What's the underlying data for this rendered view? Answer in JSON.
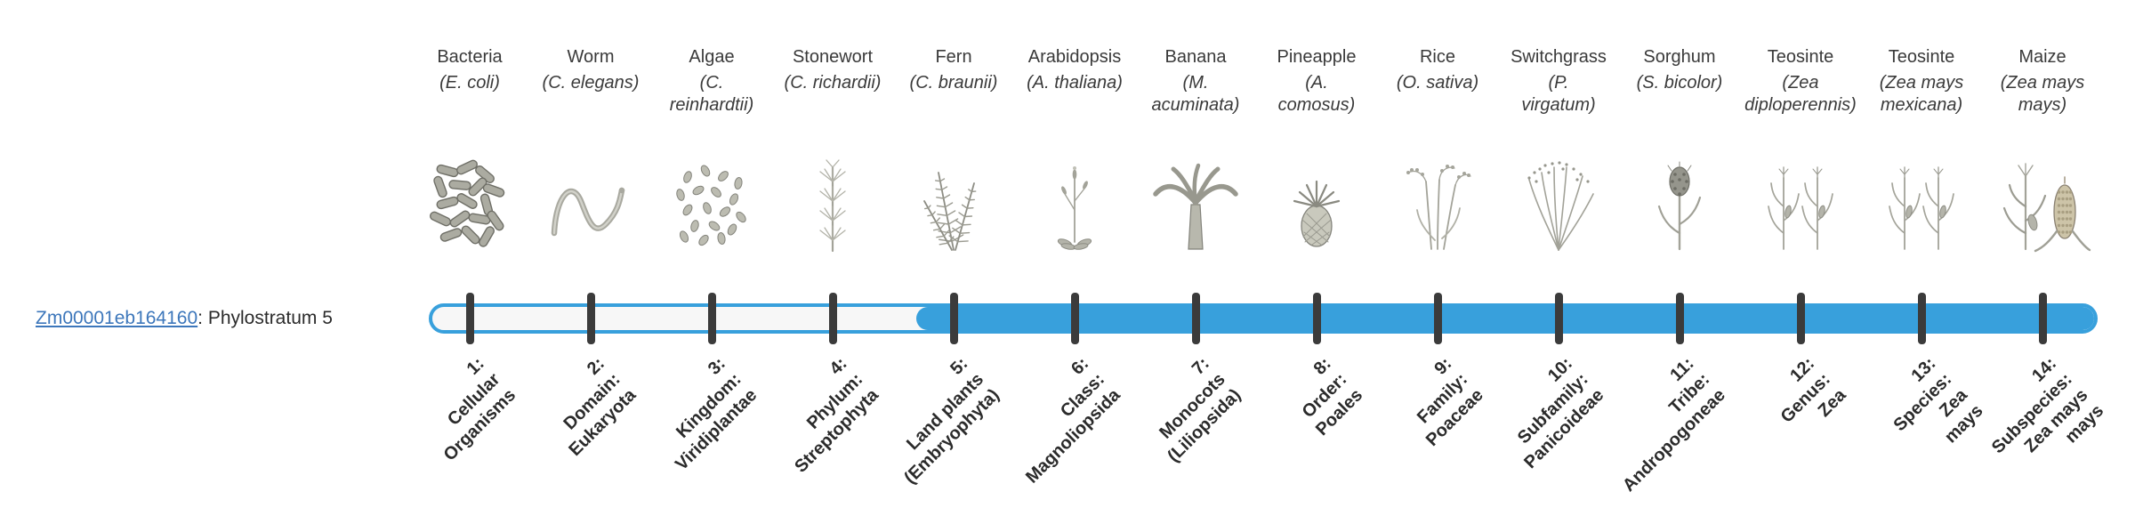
{
  "gene": {
    "id": "Zm00001eb164160",
    "suffix": ": Phylostratum 5",
    "phylostratum": 5
  },
  "colors": {
    "bar": "#38a0dc",
    "track": "#f7f7f7",
    "tick": "#3b3b3b",
    "link": "#3d77bb",
    "text": "#3a3a3a"
  },
  "figure": {
    "strata_count": 14,
    "bar_filled_from_stratum": 5
  },
  "organisms": [
    {
      "name": "Bacteria",
      "sci": "(E. coli)",
      "icon": "bacteria-icon"
    },
    {
      "name": "Worm",
      "sci": "(C. elegans)",
      "icon": "worm-icon"
    },
    {
      "name": "Algae",
      "sci": "(C.\nreinhardtii)",
      "icon": "algae-icon"
    },
    {
      "name": "Stonewort",
      "sci": "(C. richardii)",
      "icon": "stonewort-icon"
    },
    {
      "name": "Fern",
      "sci": "(C. braunii)",
      "icon": "fern-icon"
    },
    {
      "name": "Arabidopsis",
      "sci": "(A. thaliana)",
      "icon": "arabidopsis-icon"
    },
    {
      "name": "Banana",
      "sci": "(M.\nacuminata)",
      "icon": "banana-icon"
    },
    {
      "name": "Pineapple",
      "sci": "(A.\ncomosus)",
      "icon": "pineapple-icon"
    },
    {
      "name": "Rice",
      "sci": "(O. sativa)",
      "icon": "rice-icon"
    },
    {
      "name": "Switchgrass",
      "sci": "(P.\nvirgatum)",
      "icon": "switchgrass-icon"
    },
    {
      "name": "Sorghum",
      "sci": "(S. bicolor)",
      "icon": "sorghum-icon"
    },
    {
      "name": "Teosinte",
      "sci": "(Zea\ndiploperennis)",
      "icon": "teosinte-icon"
    },
    {
      "name": "Teosinte",
      "sci": "(Zea mays\nmexicana)",
      "icon": "teosinte-icon"
    },
    {
      "name": "Maize",
      "sci": "(Zea mays\nmays)",
      "icon": "maize-icon"
    }
  ],
  "phylostrata": [
    {
      "num": 1,
      "lines": [
        "1:",
        "Cellular",
        "Organisms"
      ]
    },
    {
      "num": 2,
      "lines": [
        "2:",
        "Domain:",
        "Eukaryota"
      ]
    },
    {
      "num": 3,
      "lines": [
        "3:",
        "Kingdom:",
        "Viridiplantae"
      ]
    },
    {
      "num": 4,
      "lines": [
        "4:",
        "Phylum:",
        "Streptophyta"
      ]
    },
    {
      "num": 5,
      "lines": [
        "5:",
        "Land plants",
        "(Embryophyta)"
      ]
    },
    {
      "num": 6,
      "lines": [
        "6:",
        "Class:",
        "Magnoliopsida"
      ]
    },
    {
      "num": 7,
      "lines": [
        "7:",
        "Monocots",
        "(Liliopsida)"
      ]
    },
    {
      "num": 8,
      "lines": [
        "8:",
        "Order:",
        "Poales"
      ]
    },
    {
      "num": 9,
      "lines": [
        "9:",
        "Family:",
        "Poaceae"
      ]
    },
    {
      "num": 10,
      "lines": [
        "10:",
        "Subfamily:",
        "Panicoideae"
      ]
    },
    {
      "num": 11,
      "lines": [
        "11:",
        "Tribe:",
        "Andropogoneae"
      ]
    },
    {
      "num": 12,
      "lines": [
        "12:",
        "Genus:",
        "Zea"
      ]
    },
    {
      "num": 13,
      "lines": [
        "13:",
        "Species:",
        "Zea",
        "mays"
      ]
    },
    {
      "num": 14,
      "lines": [
        "14:",
        "Subspecies:",
        "Zea mays",
        "mays"
      ]
    }
  ]
}
